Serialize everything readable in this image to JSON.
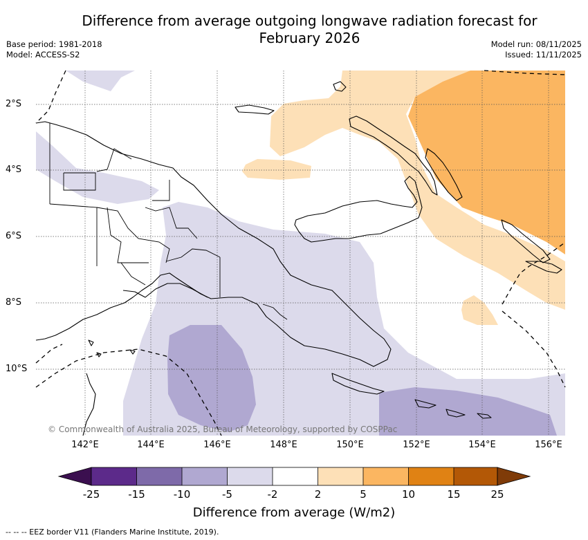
{
  "title_line1": "Difference from average outgoing longwave radiation forecast for",
  "title_line2": "February 2026",
  "base_period": "Base period: 1981-2018",
  "model": "Model: ACCESS-S2",
  "model_run": "Model run: 08/11/2025",
  "issued": "Issued: 11/11/2025",
  "copyright": "© Commonwealth of Australia 2025, Bureau of Meteorology, supported by COSPPac",
  "latitudes": [
    "2°S",
    "4°S",
    "6°S",
    "8°S",
    "10°S"
  ],
  "longitudes": [
    "142°E",
    "144°E",
    "146°E",
    "148°E",
    "150°E",
    "152°E",
    "154°E",
    "156°E"
  ],
  "colorbar": {
    "title": "Difference from average (W/m2)",
    "ticks": [
      "-25",
      "-15",
      "-10",
      "-5",
      "-2",
      "2",
      "5",
      "10",
      "15",
      "25"
    ],
    "colors": [
      "#3b0f4f",
      "#5c2a8a",
      "#7e6aa9",
      "#b0a8d1",
      "#dcdaeb",
      "#ffffff",
      "#fde0b7",
      "#fbb661",
      "#e08214",
      "#b35806",
      "#7f3b08"
    ]
  },
  "legend": "--  --  -- EEZ border V11 (Flanders Marine Institute, 2019)."
}
